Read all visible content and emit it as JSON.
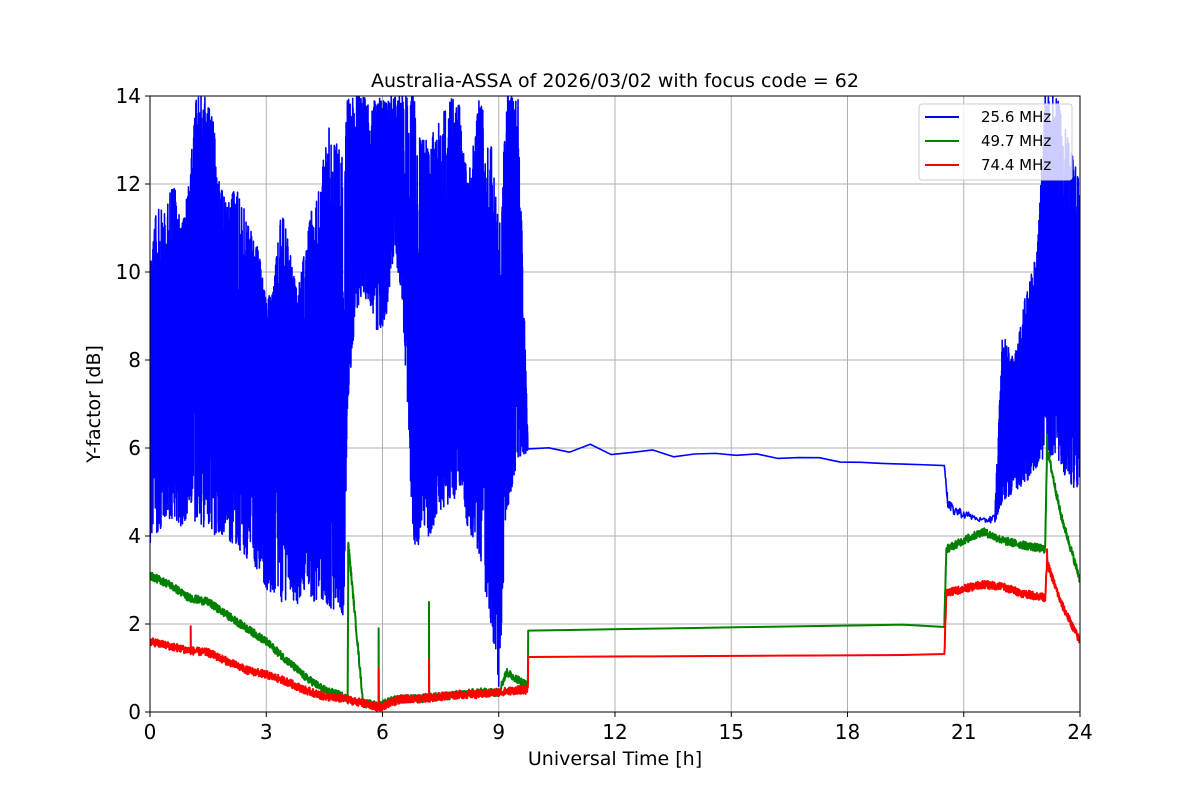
{
  "chart_data": {
    "type": "line",
    "title": "Australia-ASSA of 2026/03/02 with focus code = 62",
    "xlabel": "Universal Time [h]",
    "ylabel": "Y-factor [dB]",
    "xlim": [
      0,
      24
    ],
    "ylim": [
      0,
      14
    ],
    "xticks": [
      0,
      3,
      6,
      9,
      12,
      15,
      18,
      21,
      24
    ],
    "yticks": [
      0,
      2,
      4,
      6,
      8,
      10,
      12,
      14
    ],
    "grid": true,
    "legend_position": "top-right",
    "series": [
      {
        "name": "25.6 MHz",
        "color": "#0000ff",
        "x": [
          0,
          0.2,
          0.4,
          0.6,
          0.8,
          1.0,
          1.2,
          1.4,
          1.6,
          1.8,
          2.0,
          2.2,
          2.4,
          2.6,
          2.8,
          3.0,
          3.2,
          3.4,
          3.6,
          3.8,
          4.0,
          4.2,
          4.4,
          4.6,
          4.8,
          5.0,
          5.1,
          5.3,
          5.5,
          5.7,
          5.9,
          6.1,
          6.3,
          6.5,
          6.8,
          7.0,
          7.2,
          7.5,
          7.8,
          8.0,
          8.2,
          8.5,
          8.8,
          9.0,
          9.2,
          9.5,
          9.75,
          20.5,
          20.6,
          21.0,
          21.5,
          21.8,
          22.0,
          22.3,
          22.6,
          22.9,
          23.1,
          23.4,
          23.7,
          24.0
        ],
        "min": [
          3.8,
          4.1,
          4.3,
          4.4,
          4.2,
          4.5,
          4.3,
          4.2,
          4.0,
          4.1,
          3.9,
          3.8,
          3.6,
          3.4,
          3.2,
          2.8,
          2.6,
          2.5,
          2.6,
          2.4,
          2.8,
          2.5,
          2.6,
          2.4,
          2.3,
          2.2,
          7.0,
          9.0,
          9.5,
          9.2,
          8.5,
          9.0,
          10.5,
          9.5,
          3.8,
          3.7,
          4.0,
          4.5,
          4.8,
          5.0,
          4.2,
          3.5,
          2.0,
          0.5,
          4.5,
          5.8,
          5.9,
          5.6,
          4.5,
          4.4,
          4.3,
          4.3,
          4.8,
          5.0,
          5.2,
          5.6,
          5.8,
          5.8,
          5.2,
          5.0
        ],
        "max": [
          10.6,
          11.5,
          11.3,
          12.2,
          11.0,
          12.0,
          14.0,
          14.0,
          13.7,
          12.0,
          11.5,
          12.0,
          11.5,
          11.0,
          10.5,
          9.3,
          9.8,
          11.5,
          10.5,
          9.5,
          10.5,
          11.6,
          12.0,
          13.5,
          13.0,
          12.5,
          14.0,
          14.0,
          14.0,
          13.8,
          14.0,
          14.0,
          14.0,
          14.0,
          14.0,
          13.0,
          13.0,
          13.5,
          14.0,
          13.8,
          12.0,
          14.0,
          13.0,
          11.0,
          14.0,
          14.0,
          6.2,
          5.6,
          4.8,
          4.6,
          4.4,
          4.5,
          8.6,
          8.0,
          9.5,
          10.5,
          14.0,
          14.0,
          13.0,
          12.0
        ]
      },
      {
        "name": "49.7 MHz",
        "color": "#008000",
        "x": [
          0,
          0.5,
          1.0,
          1.5,
          2.0,
          2.5,
          3.0,
          3.5,
          4.0,
          4.5,
          5.0,
          5.1,
          5.12,
          5.5,
          5.9,
          6.2,
          6.5,
          7.0,
          7.2,
          7.5,
          8.0,
          8.5,
          9.0,
          9.2,
          9.75,
          9.76,
          20.5,
          20.55,
          21.0,
          21.5,
          22.0,
          22.5,
          23.1,
          23.15,
          23.5,
          24.0
        ],
        "y": [
          3.1,
          2.9,
          2.6,
          2.5,
          2.2,
          1.9,
          1.6,
          1.2,
          0.8,
          0.5,
          0.35,
          0.3,
          3.8,
          0.2,
          0.15,
          0.25,
          0.3,
          0.3,
          0.35,
          0.35,
          0.4,
          0.45,
          0.45,
          0.9,
          0.6,
          1.85,
          2.0,
          3.7,
          3.9,
          4.1,
          3.9,
          3.8,
          3.7,
          6.0,
          4.5,
          3.0
        ],
        "spikes": [
          [
            5.12,
            3.8
          ],
          [
            5.9,
            1.9
          ],
          [
            7.2,
            2.5
          ],
          [
            23.15,
            6.3
          ]
        ]
      },
      {
        "name": "74.4 MHz",
        "color": "#ff0000",
        "x": [
          0,
          0.5,
          1.0,
          1.5,
          2.0,
          2.5,
          3.0,
          3.5,
          4.0,
          4.5,
          5.0,
          5.5,
          5.9,
          6.2,
          6.5,
          7.0,
          7.5,
          8.0,
          8.5,
          9.0,
          9.5,
          9.75,
          9.76,
          20.5,
          20.55,
          21.0,
          21.5,
          22.0,
          22.5,
          23.1,
          23.15,
          23.5,
          24.0
        ],
        "y": [
          1.6,
          1.5,
          1.4,
          1.35,
          1.15,
          0.95,
          0.85,
          0.7,
          0.5,
          0.35,
          0.3,
          0.2,
          0.1,
          0.2,
          0.3,
          0.3,
          0.35,
          0.4,
          0.4,
          0.45,
          0.5,
          0.5,
          1.25,
          1.3,
          2.7,
          2.8,
          2.9,
          2.85,
          2.7,
          2.6,
          3.4,
          2.5,
          1.6
        ],
        "spikes": [
          [
            1.05,
            1.95
          ],
          [
            5.9,
            1.0
          ],
          [
            7.2,
            1.2
          ],
          [
            23.15,
            3.7
          ]
        ]
      }
    ]
  }
}
